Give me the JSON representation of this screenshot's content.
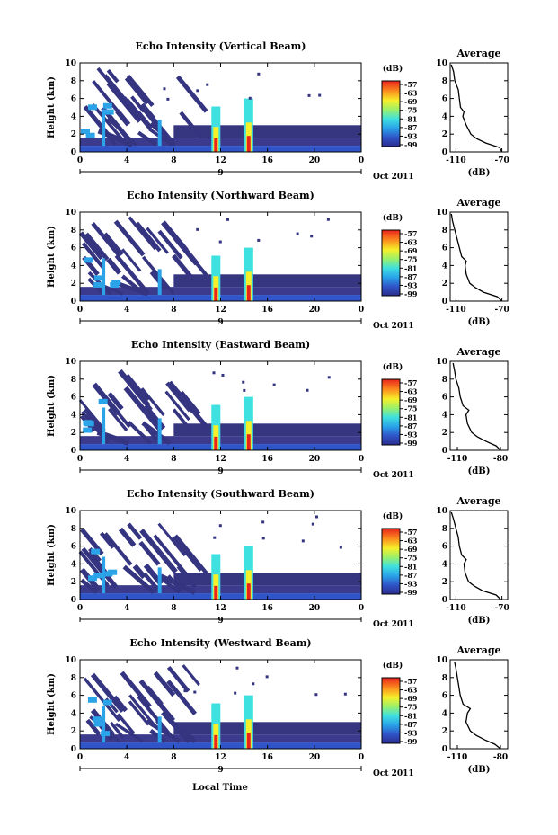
{
  "chart_data": [
    {
      "type": "heatmap",
      "title": "Echo Intensity (Vertical Beam)",
      "ylabel": "Height (km)",
      "xticks": [
        "0",
        "4",
        "8",
        "12",
        "16",
        "20",
        "0"
      ],
      "yticks": [
        "0",
        "2",
        "4",
        "6",
        "8",
        "10"
      ],
      "date_label": "9",
      "date_suffix": "Oct 2011",
      "xlim": [
        0,
        24
      ],
      "ylim": [
        0,
        10
      ],
      "colorbar": {
        "unit": "(dB)",
        "ticks": [
          "-57",
          "-63",
          "-69",
          "-75",
          "-81",
          "-87",
          "-93",
          "-99"
        ],
        "range": [
          -99,
          -57
        ]
      },
      "profile": {
        "title": "Average",
        "xlabel": "(dB)",
        "xticks": [
          "-110",
          "-70"
        ],
        "xlim": [
          -115,
          -65
        ],
        "yticks": [
          "0",
          "2",
          "4",
          "6",
          "8",
          "10"
        ],
        "ylim": [
          0,
          10
        ],
        "height_km": [
          0,
          0.5,
          1,
          1.5,
          2,
          3,
          4,
          4.5,
          5,
          6,
          7,
          8,
          9,
          9.8
        ],
        "intensity_db": [
          -70,
          -72,
          -84,
          -92,
          -97,
          -101,
          -104,
          -103,
          -106,
          -107,
          -108,
          -111,
          -112,
          -114
        ]
      }
    },
    {
      "type": "heatmap",
      "title": "Echo Intensity (Northward Beam)",
      "ylabel": "Height (km)",
      "xticks": [
        "0",
        "4",
        "8",
        "12",
        "16",
        "20",
        "0"
      ],
      "yticks": [
        "0",
        "2",
        "4",
        "6",
        "8",
        "10"
      ],
      "date_label": "9",
      "date_suffix": "Oct 2011",
      "xlim": [
        0,
        24
      ],
      "ylim": [
        0,
        10
      ],
      "colorbar": {
        "unit": "(dB)",
        "ticks": [
          "-57",
          "-63",
          "-69",
          "-75",
          "-81",
          "-87",
          "-93",
          "-99"
        ],
        "range": [
          -99,
          -57
        ]
      },
      "profile": {
        "title": "Average",
        "xlabel": "(dB)",
        "xticks": [
          "-110",
          "-70"
        ],
        "xlim": [
          -115,
          -65
        ],
        "yticks": [
          "0",
          "2",
          "4",
          "6",
          "8",
          "10"
        ],
        "ylim": [
          0,
          10
        ],
        "height_km": [
          0,
          0.5,
          1,
          1.5,
          2,
          3,
          4,
          4.5,
          5,
          6,
          7,
          8,
          9,
          9.8
        ],
        "intensity_db": [
          -70,
          -74,
          -86,
          -93,
          -98,
          -101,
          -102,
          -101,
          -105,
          -107,
          -109,
          -111,
          -113,
          -114
        ]
      }
    },
    {
      "type": "heatmap",
      "title": "Echo Intensity (Eastward Beam)",
      "ylabel": "Height (km)",
      "xticks": [
        "0",
        "4",
        "8",
        "12",
        "16",
        "20",
        "0"
      ],
      "yticks": [
        "0",
        "2",
        "4",
        "6",
        "8",
        "10"
      ],
      "date_label": "9",
      "date_suffix": "Oct 2011",
      "xlim": [
        0,
        24
      ],
      "ylim": [
        0,
        10
      ],
      "colorbar": {
        "unit": "(dB)",
        "ticks": [
          "-57",
          "-63",
          "-69",
          "-75",
          "-81",
          "-87",
          "-93",
          "-99"
        ],
        "range": [
          -99,
          -57
        ]
      },
      "profile": {
        "title": "Average",
        "xlabel": "(dB)",
        "xticks": [
          "-110",
          "-80"
        ],
        "xlim": [
          -115,
          -75
        ],
        "yticks": [
          "0",
          "2",
          "4",
          "6",
          "8",
          "10"
        ],
        "ylim": [
          0,
          10
        ],
        "height_km": [
          0,
          0.5,
          1,
          1.5,
          2,
          3,
          4,
          4.5,
          5,
          6,
          7,
          8,
          9,
          9.8
        ],
        "intensity_db": [
          -80,
          -83,
          -90,
          -96,
          -100,
          -103,
          -104,
          -102,
          -106,
          -108,
          -109,
          -111,
          -112,
          -113
        ]
      }
    },
    {
      "type": "heatmap",
      "title": "Echo Intensity (Southward Beam)",
      "ylabel": "Height (km)",
      "xticks": [
        "0",
        "4",
        "8",
        "12",
        "16",
        "20",
        "0"
      ],
      "yticks": [
        "0",
        "2",
        "4",
        "6",
        "8",
        "10"
      ],
      "date_label": "9",
      "date_suffix": "Oct 2011",
      "xlim": [
        0,
        24
      ],
      "ylim": [
        0,
        10
      ],
      "colorbar": {
        "unit": "(dB)",
        "ticks": [
          "-57",
          "-63",
          "-69",
          "-75",
          "-81",
          "-87",
          "-93",
          "-99"
        ],
        "range": [
          -99,
          -57
        ]
      },
      "profile": {
        "title": "Average",
        "xlabel": "(dB)",
        "xticks": [
          "-110",
          "-70"
        ],
        "xlim": [
          -115,
          -65
        ],
        "yticks": [
          "0",
          "2",
          "4",
          "6",
          "8",
          "10"
        ],
        "ylim": [
          0,
          10
        ],
        "height_km": [
          0,
          0.5,
          1,
          1.5,
          2,
          3,
          4,
          4.5,
          5,
          6,
          7,
          8,
          9,
          9.8
        ],
        "intensity_db": [
          -71,
          -75,
          -87,
          -94,
          -99,
          -102,
          -103,
          -101,
          -105,
          -107,
          -108,
          -110,
          -112,
          -114
        ]
      }
    },
    {
      "type": "heatmap",
      "title": "Echo Intensity (Westward Beam)",
      "ylabel": "Height (km)",
      "xticks": [
        "0",
        "4",
        "8",
        "12",
        "16",
        "20",
        "0"
      ],
      "yticks": [
        "0",
        "2",
        "4",
        "6",
        "8",
        "10"
      ],
      "date_label": "9",
      "date_suffix": "Oct 2011",
      "xlim": [
        0,
        24
      ],
      "ylim": [
        0,
        10
      ],
      "colorbar": {
        "unit": "(dB)",
        "ticks": [
          "-57",
          "-63",
          "-69",
          "-75",
          "-81",
          "-87",
          "-93",
          "-99"
        ],
        "range": [
          -99,
          -57
        ]
      },
      "profile": {
        "title": "Average",
        "xlabel": "(dB)",
        "xticks": [
          "-110",
          "-80"
        ],
        "xlim": [
          -115,
          -75
        ],
        "yticks": [
          "0",
          "2",
          "4",
          "6",
          "8",
          "10"
        ],
        "ylim": [
          0,
          10
        ],
        "height_km": [
          0,
          0.5,
          1,
          1.5,
          2,
          3,
          4,
          4.5,
          5,
          6,
          7,
          8,
          9,
          9.8
        ],
        "intensity_db": [
          -80,
          -84,
          -91,
          -97,
          -101,
          -104,
          -103,
          -101,
          -106,
          -108,
          -109,
          -110,
          -111,
          -112
        ]
      }
    }
  ],
  "shared_xlabel": "Local Time"
}
